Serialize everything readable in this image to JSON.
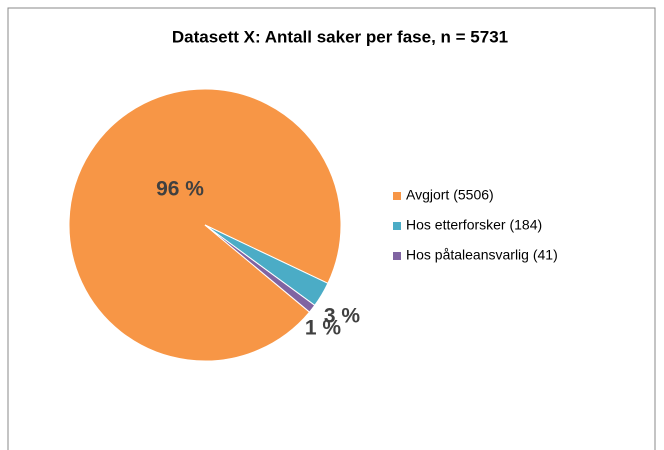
{
  "chart_data": {
    "type": "pie",
    "title": "Datasett X: Antall saker per fase, n = 5731",
    "categories": [
      "Avgjort (5506)",
      "Hos etterforsker (184)",
      "Hos påtaleansvarlig (41)"
    ],
    "values": [
      96,
      3,
      1
    ],
    "value_labels": [
      "96 %",
      "3 %",
      "1 %"
    ],
    "colors": [
      "#f79646",
      "#4bacc6",
      "#8064a2"
    ],
    "legend": "right"
  }
}
